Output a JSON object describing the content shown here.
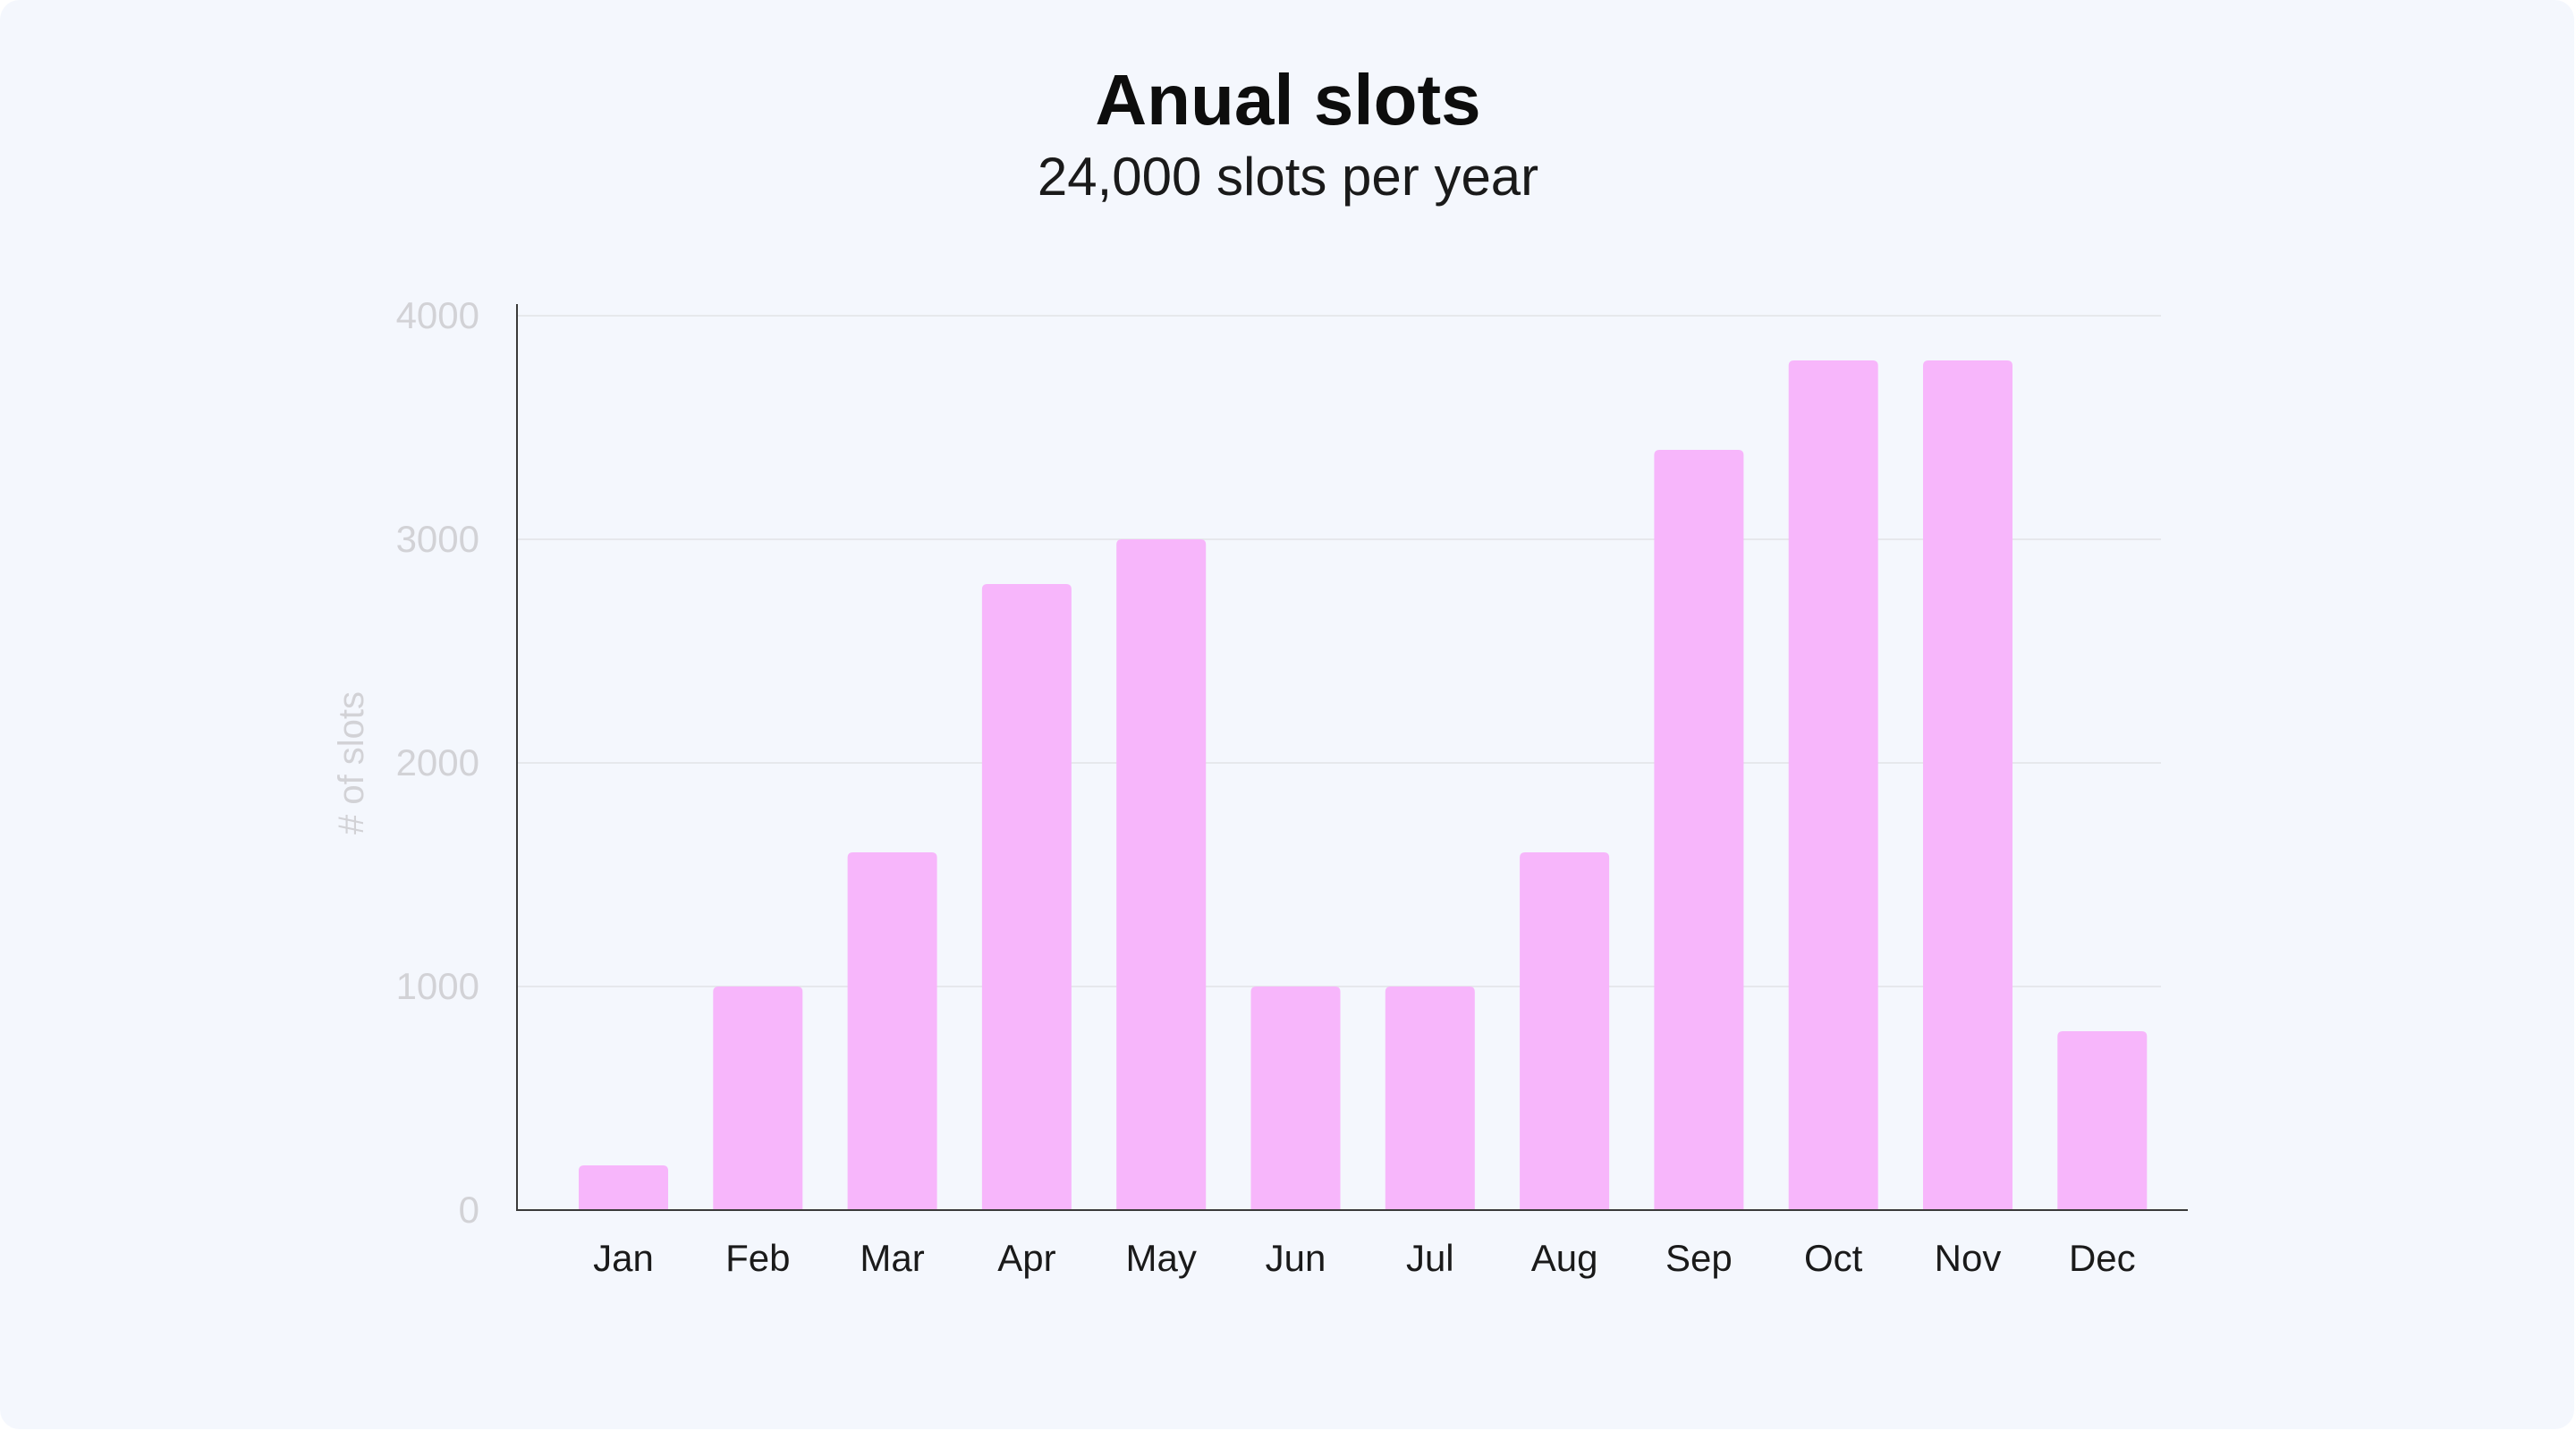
{
  "card": {
    "title": "Anual slots",
    "subtitle": "24,000 slots per year"
  },
  "colors": {
    "background": "#f4f7fd",
    "bar": "#f7b6fb",
    "tick_label": "#d2d2d6",
    "category_label": "#1a1a1a",
    "axis": "#3a3a3a",
    "grid": "#e6e8ec"
  },
  "chart_data": {
    "type": "bar",
    "title": "Anual slots",
    "subtitle": "24,000 slots per year",
    "xlabel": "",
    "ylabel": "# of slots",
    "categories": [
      "Jan",
      "Feb",
      "Mar",
      "Apr",
      "May",
      "Jun",
      "Jul",
      "Aug",
      "Sep",
      "Oct",
      "Nov",
      "Dec"
    ],
    "values": [
      200,
      1000,
      1600,
      2800,
      3000,
      1000,
      1000,
      1600,
      3400,
      3800,
      3800,
      800
    ],
    "ylim": [
      0,
      4000
    ],
    "yticks": [
      0,
      1000,
      2000,
      3000,
      4000
    ],
    "grid": true,
    "legend": "none"
  }
}
